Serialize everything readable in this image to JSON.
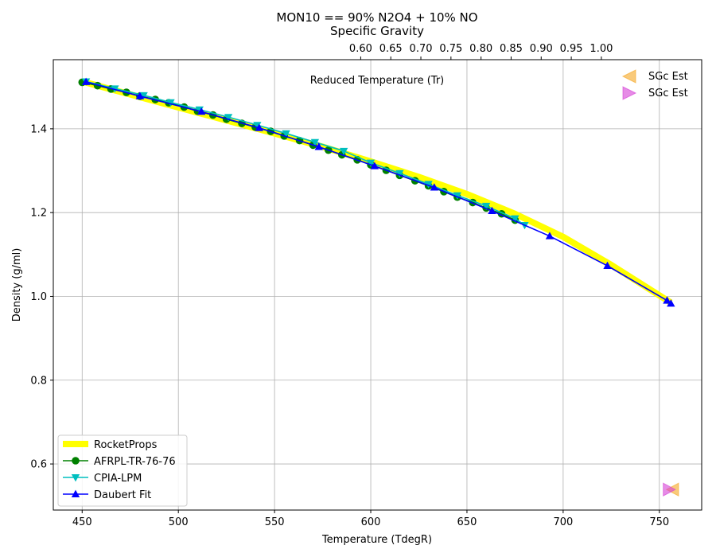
{
  "chart_data": {
    "type": "line",
    "title": "MON10 == 90% N2O4 + 10% NO",
    "top_axis_label": "Specific Gravity",
    "annotation": "Reduced Temperature (Tr)",
    "xlabel": "Temperature (TdegR)",
    "ylabel": "Density (g/ml)",
    "xlim": [
      435,
      772
    ],
    "ylim": [
      0.49,
      1.565
    ],
    "x_ticks": [
      450,
      500,
      550,
      600,
      650,
      700,
      750
    ],
    "y_ticks": [
      0.6,
      0.8,
      1.0,
      1.2,
      1.4
    ],
    "top_ticks": [
      0.6,
      0.65,
      0.7,
      0.75,
      0.8,
      0.85,
      0.9,
      0.95,
      1.0
    ],
    "top_tick_labels": [
      "0.60",
      "0.65",
      "0.70",
      "0.75",
      "0.80",
      "0.85",
      "0.90",
      "0.95",
      "1.00"
    ],
    "top_axis_map": {
      "sg_a": 0.6,
      "x_a": 453.4,
      "sg_b": 1.0,
      "x_b": 755.9
    },
    "grid": true,
    "legend_position": "lower-left",
    "series": [
      {
        "name": "RocketProps",
        "color": "#ffff00",
        "marker": "none",
        "x": [
          450,
          475,
          500,
          525,
          550,
          575,
          600,
          625,
          650,
          675,
          700,
          725,
          756
        ],
        "y": [
          1.513,
          1.482,
          1.451,
          1.42,
          1.389,
          1.357,
          1.322,
          1.285,
          1.244,
          1.197,
          1.142,
          1.075,
          0.985
        ]
      },
      {
        "name": "AFRPL-TR-76-76",
        "color": "#008000",
        "marker": "circle",
        "x": [
          450,
          458,
          465,
          473,
          480,
          488,
          495,
          503,
          510,
          518,
          525,
          533,
          540,
          548,
          555,
          563,
          570,
          578,
          585,
          593,
          600,
          608,
          615,
          623,
          630,
          638,
          645,
          653,
          660,
          668,
          675
        ],
        "y": [
          1.511,
          1.503,
          1.495,
          1.487,
          1.478,
          1.47,
          1.462,
          1.452,
          1.442,
          1.433,
          1.423,
          1.413,
          1.404,
          1.394,
          1.383,
          1.372,
          1.361,
          1.349,
          1.338,
          1.326,
          1.314,
          1.301,
          1.289,
          1.276,
          1.264,
          1.25,
          1.237,
          1.224,
          1.211,
          1.197,
          1.182
        ]
      },
      {
        "name": "CPIA-LPM",
        "color": "#00bfbf",
        "marker": "triangle-down",
        "x": [
          452,
          467,
          482,
          496,
          511,
          526,
          541,
          556,
          571,
          586,
          600,
          615,
          630,
          645,
          660,
          675,
          680
        ],
        "y": [
          1.513,
          1.496,
          1.48,
          1.463,
          1.446,
          1.428,
          1.409,
          1.389,
          1.368,
          1.347,
          1.319,
          1.294,
          1.268,
          1.241,
          1.216,
          1.186,
          1.17
        ]
      },
      {
        "name": "Daubert Fit",
        "color": "#0000ff",
        "marker": "triangle-up",
        "x": [
          452,
          480,
          512,
          542,
          573,
          602,
          633,
          663,
          693,
          723,
          754,
          756
        ],
        "y": [
          1.512,
          1.478,
          1.441,
          1.402,
          1.357,
          1.311,
          1.26,
          1.204,
          1.144,
          1.073,
          0.99,
          0.983
        ]
      }
    ],
    "sgc_points": [
      {
        "name": "SGc Est",
        "color": "#f5a623",
        "marker": "triangle-left",
        "x": 757,
        "y": 0.539
      },
      {
        "name": "SGc Est",
        "color": "#d63fd6",
        "marker": "triangle-right",
        "x": 755,
        "y": 0.539
      }
    ]
  }
}
